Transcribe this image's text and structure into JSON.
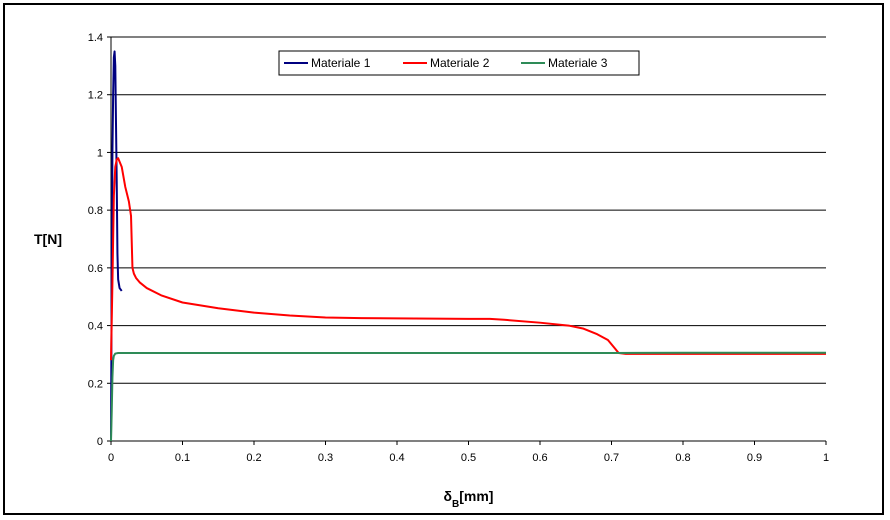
{
  "chart_data": {
    "type": "line",
    "title": "",
    "xlabel_main": "δ",
    "xlabel_sub": "B",
    "xlabel_unit": "[mm]",
    "ylabel": "T[N]",
    "xlim": [
      0,
      1
    ],
    "ylim": [
      0,
      1.4
    ],
    "x_ticks": [
      "0",
      "0.1",
      "0.2",
      "0.3",
      "0.4",
      "0.5",
      "0.6",
      "0.7",
      "0.8",
      "0.9",
      "1"
    ],
    "y_ticks": [
      "0",
      "0.2",
      "0.4",
      "0.6",
      "0.8",
      "1",
      "1.2",
      "1.4"
    ],
    "grid": "horizontal",
    "legend_position": "top-center",
    "series": [
      {
        "name": "Materiale 1",
        "color": "#000080",
        "x": [
          0,
          0.001,
          0.002,
          0.003,
          0.004,
          0.005,
          0.006,
          0.007,
          0.008,
          0.009,
          0.01,
          0.012,
          0.015
        ],
        "y": [
          0,
          0.6,
          1.0,
          1.2,
          1.33,
          1.35,
          1.3,
          1.1,
          0.9,
          0.65,
          0.56,
          0.53,
          0.52
        ]
      },
      {
        "name": "Materiale 2",
        "color": "#ff0000",
        "x": [
          0,
          0.002,
          0.004,
          0.006,
          0.008,
          0.01,
          0.015,
          0.02,
          0.025,
          0.028,
          0.03,
          0.032,
          0.035,
          0.04,
          0.05,
          0.07,
          0.1,
          0.15,
          0.2,
          0.25,
          0.3,
          0.35,
          0.4,
          0.45,
          0.5,
          0.53,
          0.55,
          0.6,
          0.64,
          0.66,
          0.68,
          0.695,
          0.705,
          0.71,
          0.72,
          0.8,
          0.9,
          1.0
        ],
        "y": [
          0.28,
          0.55,
          0.85,
          0.95,
          0.975,
          0.98,
          0.95,
          0.88,
          0.83,
          0.78,
          0.6,
          0.58,
          0.565,
          0.55,
          0.53,
          0.505,
          0.48,
          0.46,
          0.445,
          0.435,
          0.428,
          0.426,
          0.425,
          0.424,
          0.423,
          0.423,
          0.42,
          0.41,
          0.4,
          0.39,
          0.37,
          0.35,
          0.32,
          0.305,
          0.302,
          0.302,
          0.302,
          0.302
        ]
      },
      {
        "name": "Materiale 3",
        "color": "#2e8b57",
        "x": [
          0,
          0.001,
          0.002,
          0.003,
          0.004,
          0.006,
          0.01,
          0.05,
          0.2,
          0.5,
          0.7,
          0.8,
          1.0
        ],
        "y": [
          0,
          0.1,
          0.22,
          0.28,
          0.295,
          0.303,
          0.305,
          0.305,
          0.305,
          0.305,
          0.305,
          0.306,
          0.306
        ]
      }
    ]
  }
}
